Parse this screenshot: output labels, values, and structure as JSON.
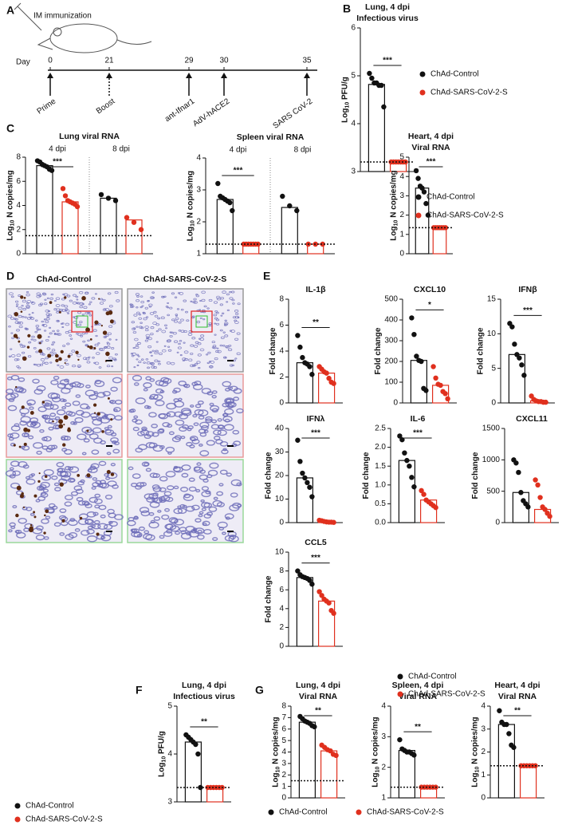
{
  "figure": {
    "panel_labels": [
      "A",
      "B",
      "C",
      "D",
      "E",
      "F",
      "G"
    ],
    "timeline": {
      "title": "IM immunization",
      "day_label": "Day",
      "events": [
        {
          "day": "0",
          "label": "Prime"
        },
        {
          "day": "21",
          "label": "Boost"
        },
        {
          "day": "29",
          "label": "ant-Ifnar1"
        },
        {
          "day": "30",
          "label": "AdV-hACE2"
        },
        {
          "day": "35",
          "label": "SARS CoV-2"
        }
      ]
    },
    "histology": {
      "columns": [
        "ChAd-Control",
        "ChAd-SARS-CoV-2-S"
      ]
    },
    "groups": [
      {
        "name": "ChAd-Control",
        "color": "#111111"
      },
      {
        "name": "ChAd-SARS-CoV-2-S",
        "color": "#e0301e"
      }
    ]
  },
  "chart_data": [
    {
      "type": "bar",
      "title": [
        "Lung, 4 dpi",
        "Infectious virus"
      ],
      "ylabel": {
        "main": "Log",
        "sub": "10",
        "unit": " PFU/g"
      },
      "ylim": [
        3,
        6
      ],
      "yticks": [
        3,
        4,
        5,
        6
      ],
      "lod": 3.2,
      "sig": [
        "***"
      ],
      "series": [
        {
          "values": [
            4.82
          ],
          "points": [
            [
              5.05,
              4.95,
              4.85,
              4.85,
              4.8,
              4.8,
              4.35
            ]
          ]
        },
        {
          "values": [
            3.2
          ],
          "points": [
            [
              3.2,
              3.2,
              3.2,
              3.2,
              3.2,
              3.2,
              3.2
            ]
          ]
        }
      ]
    },
    {
      "type": "bar",
      "title": [
        "Lung viral RNA"
      ],
      "ylabel": {
        "main": "Log",
        "sub": "10",
        "unit": " N copies/mg"
      },
      "ylim": [
        0,
        8
      ],
      "yticks": [
        0,
        2,
        4,
        6,
        8
      ],
      "lod": 1.5,
      "categories": [
        "4 dpi",
        "8 dpi"
      ],
      "sig": [
        "***",
        null
      ],
      "series": [
        {
          "values": [
            7.3,
            4.6
          ],
          "points": [
            [
              7.7,
              7.6,
              7.4,
              7.3,
              7.2,
              7.0,
              6.9
            ],
            [
              4.9,
              4.6,
              4.4
            ]
          ]
        },
        {
          "values": [
            4.3,
            2.8
          ],
          "points": [
            [
              5.4,
              4.8,
              4.4,
              4.3,
              4.2,
              4.1,
              3.9
            ],
            [
              3.0,
              2.6,
              2.0
            ]
          ]
        }
      ]
    },
    {
      "type": "bar",
      "title": [
        "Spleen viral RNA"
      ],
      "ylabel": {
        "main": "Log",
        "sub": "10",
        "unit": " N copies/mg"
      },
      "ylim": [
        1,
        4
      ],
      "yticks": [
        1,
        2,
        3,
        4
      ],
      "lod": 1.3,
      "categories": [
        "4 dpi",
        "8 dpi"
      ],
      "sig": [
        "***",
        null
      ],
      "series": [
        {
          "values": [
            2.7,
            2.45
          ],
          "points": [
            [
              3.2,
              2.8,
              2.75,
              2.7,
              2.65,
              2.6,
              2.35
            ],
            [
              2.8,
              2.5,
              2.35
            ]
          ]
        },
        {
          "values": [
            1.3,
            1.3
          ],
          "points": [
            [
              1.3,
              1.3,
              1.3,
              1.3,
              1.3,
              1.3,
              1.3
            ],
            [
              1.3,
              1.3,
              1.3
            ]
          ]
        }
      ]
    },
    {
      "type": "bar",
      "title": [
        "Heart, 4 dpi",
        "Viral RNA"
      ],
      "ylabel": {
        "main": "Log",
        "sub": "10",
        "unit": " N copies/mg"
      },
      "ylim": [
        0,
        5
      ],
      "yticks": [
        0,
        1,
        2,
        3,
        4,
        5
      ],
      "lod": 1.35,
      "sig": [
        "***"
      ],
      "series": [
        {
          "values": [
            3.4
          ],
          "points": [
            [
              4.3,
              3.9,
              3.5,
              3.4,
              3.2,
              2.6,
              2.0
            ]
          ]
        },
        {
          "values": [
            1.35
          ],
          "points": [
            [
              1.35,
              1.35,
              1.35,
              1.35,
              1.35,
              1.35,
              1.35
            ]
          ]
        }
      ]
    },
    {
      "type": "bar",
      "title": [
        "IL-1β"
      ],
      "ylabel": "Fold change",
      "ylim": [
        0,
        8
      ],
      "yticks": [
        0,
        2,
        4,
        6,
        8
      ],
      "sig": [
        "**"
      ],
      "series": [
        {
          "values": [
            3.1
          ],
          "points": [
            [
              5.2,
              4.3,
              3.5,
              3.1,
              3.0,
              2.8,
              2.2
            ]
          ]
        },
        {
          "values": [
            2.3
          ],
          "points": [
            [
              2.8,
              2.6,
              2.4,
              2.3,
              1.9,
              1.6,
              1.5
            ]
          ]
        }
      ]
    },
    {
      "type": "bar",
      "title": [
        "CXCL10"
      ],
      "ylabel": "Fold change",
      "ylim": [
        0,
        500
      ],
      "yticks": [
        0,
        100,
        200,
        300,
        400,
        500
      ],
      "sig": [
        "*"
      ],
      "series": [
        {
          "values": [
            205
          ],
          "points": [
            [
              410,
              330,
              225,
              205,
              200,
              70,
              60
            ]
          ]
        },
        {
          "values": [
            85
          ],
          "points": [
            [
              175,
              120,
              90,
              85,
              55,
              45,
              20
            ]
          ]
        }
      ]
    },
    {
      "type": "bar",
      "title": [
        "IFNβ"
      ],
      "ylabel": "Fold change",
      "ylim": [
        0,
        15
      ],
      "yticks": [
        0,
        5,
        10,
        15
      ],
      "sig": [
        "***"
      ],
      "series": [
        {
          "values": [
            7
          ],
          "points": [
            [
              11.5,
              11,
              8.5,
              7,
              6.5,
              5.5,
              4
            ]
          ]
        },
        {
          "values": [
            0.3
          ],
          "points": [
            [
              1,
              0.5,
              0.3,
              0.2,
              0.2,
              0.1,
              0.1
            ]
          ]
        }
      ]
    },
    {
      "type": "bar",
      "title": [
        "IFNλ"
      ],
      "ylabel": "Fold change",
      "ylim": [
        0,
        40
      ],
      "yticks": [
        0,
        10,
        20,
        30,
        40
      ],
      "sig": [
        "***"
      ],
      "series": [
        {
          "values": [
            19
          ],
          "points": [
            [
              35,
              26,
              21,
              19,
              17,
              15,
              11
            ]
          ]
        },
        {
          "values": [
            0.5
          ],
          "points": [
            [
              1,
              0.8,
              0.5,
              0.3,
              0.2,
              0.2,
              0.1
            ]
          ]
        }
      ]
    },
    {
      "type": "bar",
      "title": [
        "IL-6"
      ],
      "ylabel": "Fold change",
      "ylim": [
        0,
        2.5
      ],
      "yticks": [
        {
          "value": 0,
          "label": "0.0"
        },
        0.5,
        {
          "value": 1,
          "label": "1.0"
        },
        1.5,
        {
          "value": 2,
          "label": "2.0"
        },
        2.5
      ],
      "sig": [
        "***"
      ],
      "series": [
        {
          "values": [
            1.65
          ],
          "points": [
            [
              2.3,
              2.2,
              1.85,
              1.65,
              1.5,
              1.2,
              0.95
            ]
          ]
        },
        {
          "values": [
            0.6
          ],
          "points": [
            [
              0.85,
              0.75,
              0.6,
              0.55,
              0.5,
              0.45,
              0.4
            ]
          ]
        }
      ]
    },
    {
      "type": "bar",
      "title": [
        "CXCL11"
      ],
      "ylabel": "Fold change",
      "ylim": [
        0,
        1500
      ],
      "yticks": [
        0,
        500,
        1000,
        1500
      ],
      "sig": [
        null
      ],
      "series": [
        {
          "values": [
            480
          ],
          "points": [
            [
              1000,
              950,
              800,
              480,
              350,
              300,
              250
            ]
          ]
        },
        {
          "values": [
            210
          ],
          "points": [
            [
              680,
              600,
              400,
              250,
              210,
              150,
              100
            ]
          ]
        }
      ]
    },
    {
      "type": "bar",
      "title": [
        "CCL5"
      ],
      "ylabel": "Fold change",
      "ylim": [
        0,
        10
      ],
      "yticks": [
        0,
        2,
        4,
        6,
        8,
        10
      ],
      "sig": [
        "***"
      ],
      "series": [
        {
          "values": [
            7.3
          ],
          "points": [
            [
              8,
              7.6,
              7.4,
              7.3,
              7.2,
              7.0,
              6.6
            ]
          ]
        },
        {
          "values": [
            4.8
          ],
          "points": [
            [
              5.8,
              5.4,
              5.0,
              4.8,
              4.6,
              3.8,
              3.5
            ]
          ]
        }
      ]
    },
    {
      "type": "bar",
      "title": [
        "Lung, 4 dpi",
        "Infectious virus"
      ],
      "ylabel": {
        "main": "Log",
        "sub": "10",
        "unit": " PFU/g"
      },
      "ylim": [
        3,
        5
      ],
      "yticks": [
        3,
        4,
        5
      ],
      "lod": 3.3,
      "sig": [
        "**"
      ],
      "series": [
        {
          "values": [
            4.25
          ],
          "points": [
            [
              4.4,
              4.35,
              4.3,
              4.25,
              4.2,
              4.0,
              3.3
            ]
          ]
        },
        {
          "values": [
            3.3
          ],
          "points": [
            [
              3.3,
              3.3,
              3.3,
              3.3,
              3.3,
              3.3
            ]
          ]
        }
      ]
    },
    {
      "type": "bar",
      "title": [
        "Lung, 4 dpi",
        "Viral RNA"
      ],
      "ylabel": {
        "main": "Log",
        "sub": "10",
        "unit": " N copies/mg"
      },
      "ylim": [
        0,
        8
      ],
      "yticks": [
        0,
        1,
        2,
        3,
        4,
        5,
        6,
        7,
        8
      ],
      "lod": 1.5,
      "sig": [
        "**"
      ],
      "series": [
        {
          "values": [
            6.6
          ],
          "points": [
            [
              7.1,
              6.9,
              6.7,
              6.6,
              6.5,
              6.3,
              6.2
            ]
          ]
        },
        {
          "values": [
            4.1
          ],
          "points": [
            [
              4.6,
              4.4,
              4.2,
              4.1,
              3.8,
              3.7
            ]
          ]
        }
      ]
    },
    {
      "type": "bar",
      "title": [
        "Spleen, 4 dpi",
        "Viral RNA"
      ],
      "ylabel": {
        "main": "Log",
        "sub": "10",
        "unit": " N copies/mg"
      },
      "ylim": [
        1,
        4
      ],
      "yticks": [
        1,
        2,
        3,
        4
      ],
      "lod": 1.35,
      "sig": [
        "**"
      ],
      "series": [
        {
          "values": [
            2.55
          ],
          "points": [
            [
              2.9,
              2.6,
              2.55,
              2.5,
              2.5,
              2.45,
              2.4
            ]
          ]
        },
        {
          "values": [
            1.35
          ],
          "points": [
            [
              1.35,
              1.35,
              1.35,
              1.35,
              1.35,
              1.35
            ]
          ]
        }
      ]
    },
    {
      "type": "bar",
      "title": [
        "Heart, 4 dpi",
        "Viral RNA"
      ],
      "ylabel": {
        "main": "Log",
        "sub": "10",
        "unit": " N copies/mg"
      },
      "ylim": [
        0,
        4
      ],
      "yticks": [
        0,
        1,
        2,
        3,
        4
      ],
      "lod": 1.4,
      "sig": [
        "**"
      ],
      "series": [
        {
          "values": [
            3.2
          ],
          "points": [
            [
              3.8,
              3.3,
              3.2,
              3.2,
              2.8,
              2.3,
              2.2
            ]
          ]
        },
        {
          "values": [
            1.4
          ],
          "points": [
            [
              1.4,
              1.4,
              1.4,
              1.4,
              1.4,
              1.4
            ]
          ]
        }
      ]
    }
  ]
}
